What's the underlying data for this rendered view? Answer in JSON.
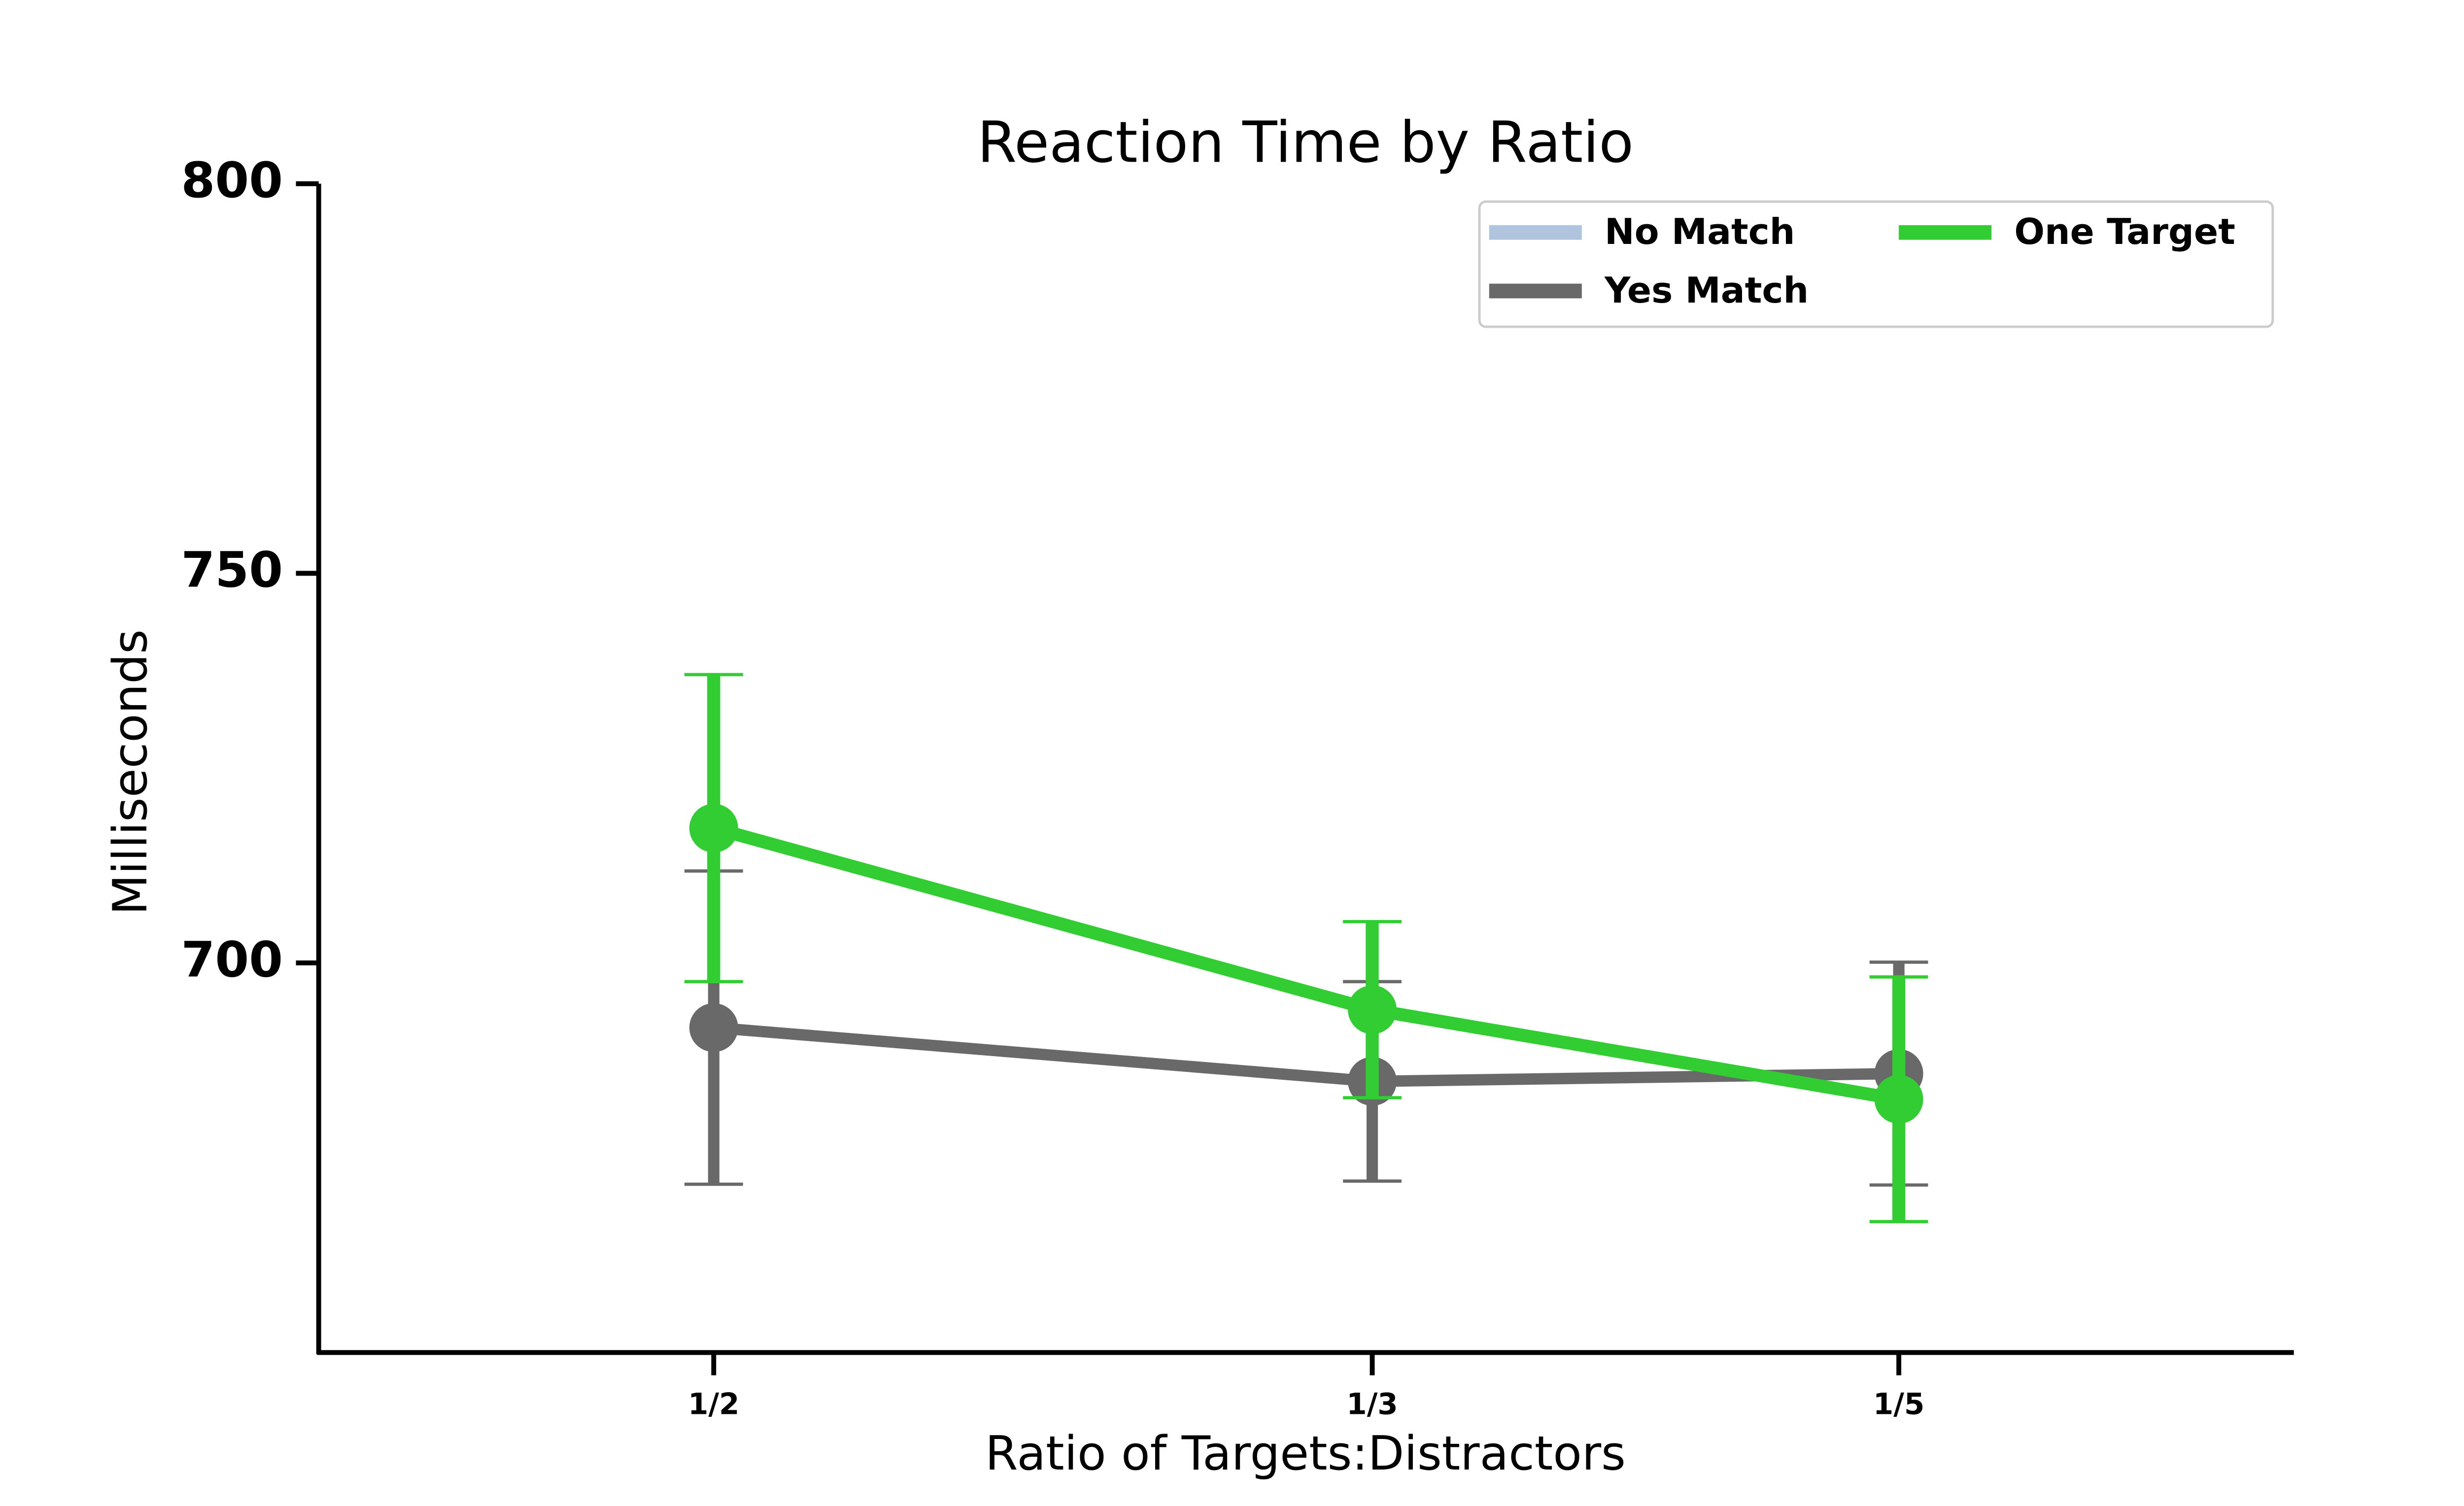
{
  "chart_data": {
    "type": "line",
    "title": "Reaction Time by Ratio",
    "xlabel": "Ratio of Targets:Distractors",
    "ylabel": "Milliseconds",
    "x": [
      0.5,
      0.3333,
      0.2
    ],
    "xlim": [
      0.6,
      0.1
    ],
    "xticks": [
      {
        "value": 0.5,
        "label": "1/2"
      },
      {
        "value": 0.3333,
        "label": "1/3"
      },
      {
        "value": 0.2,
        "label": "1/5"
      }
    ],
    "ylim": [
      650,
      800
    ],
    "yticks": [
      700,
      750,
      800
    ],
    "legend": "upper right",
    "legend_columns": 2,
    "series": [
      {
        "name": "No Match",
        "color": "#b0c4de",
        "values": [
          null,
          null,
          null
        ],
        "errors": [
          null,
          null,
          null
        ]
      },
      {
        "name": "Yes Match",
        "color": "#696969",
        "values": [
          691.7,
          684.8,
          685.8
        ],
        "errors": [
          20.1,
          12.8,
          14.3
        ]
      },
      {
        "name": "One Target",
        "color": "#32cd32",
        "values": [
          717.3,
          694.0,
          682.5
        ],
        "errors": [
          19.7,
          11.3,
          15.7
        ]
      }
    ]
  }
}
